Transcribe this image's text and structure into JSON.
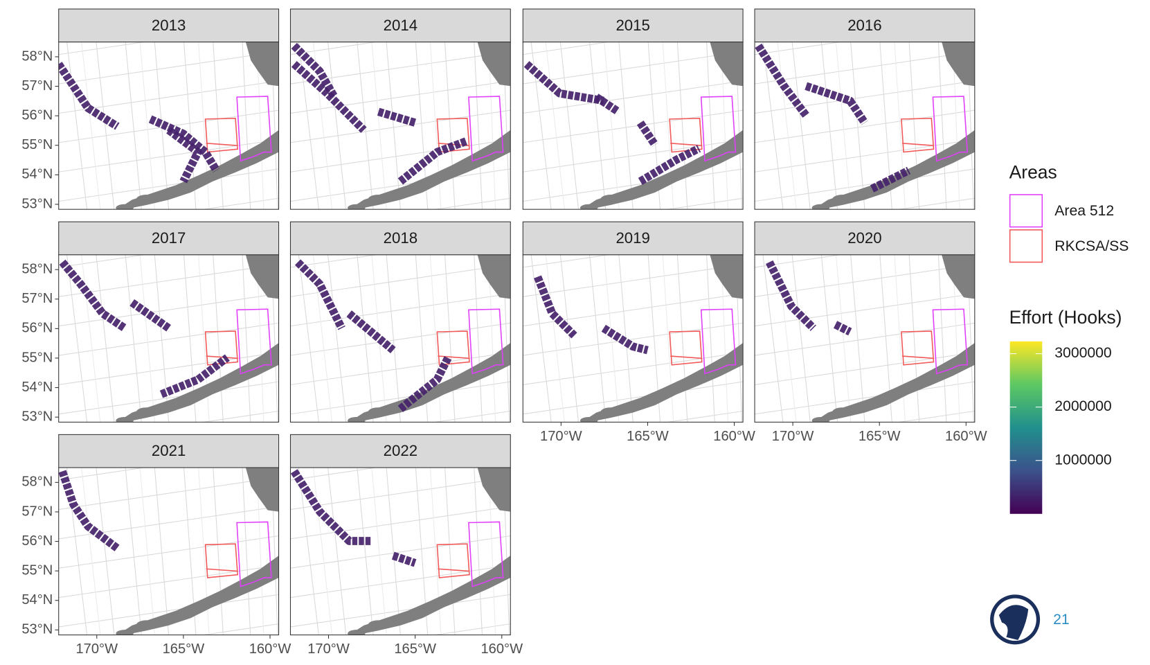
{
  "chart_data": {
    "type": "map",
    "panels": [
      {
        "title": "2013"
      },
      {
        "title": "2014"
      },
      {
        "title": "2015"
      },
      {
        "title": "2016"
      },
      {
        "title": "2017"
      },
      {
        "title": "2018"
      },
      {
        "title": "2019"
      },
      {
        "title": "2020"
      },
      {
        "title": "2021"
      },
      {
        "title": "2022"
      }
    ],
    "xlim": [
      -172.2,
      -159.5
    ],
    "ylim": [
      52.83,
      58.5
    ],
    "xticks": [
      {
        "value": -170,
        "label": "170°W"
      },
      {
        "value": -165,
        "label": "165°W"
      },
      {
        "value": -160,
        "label": "160°W"
      }
    ],
    "yticks": [
      {
        "value": 53,
        "label": "53°N"
      },
      {
        "value": 54,
        "label": "54°N"
      },
      {
        "value": 55,
        "label": "55°N"
      },
      {
        "value": 56,
        "label": "56°N"
      },
      {
        "value": 57,
        "label": "57°N"
      },
      {
        "value": 58,
        "label": "58°N"
      }
    ],
    "areas_legend": {
      "title": "Areas",
      "items": [
        {
          "name": "Area 512",
          "color": "#e040fb"
        },
        {
          "name": "RKCSA/SS",
          "color": "#f25a5a"
        }
      ]
    },
    "colorbar": {
      "title": "Effort (Hooks)",
      "lim": [
        0,
        3230000
      ],
      "ticks": [
        1000000,
        2000000,
        3000000
      ]
    },
    "page_number": "21"
  }
}
